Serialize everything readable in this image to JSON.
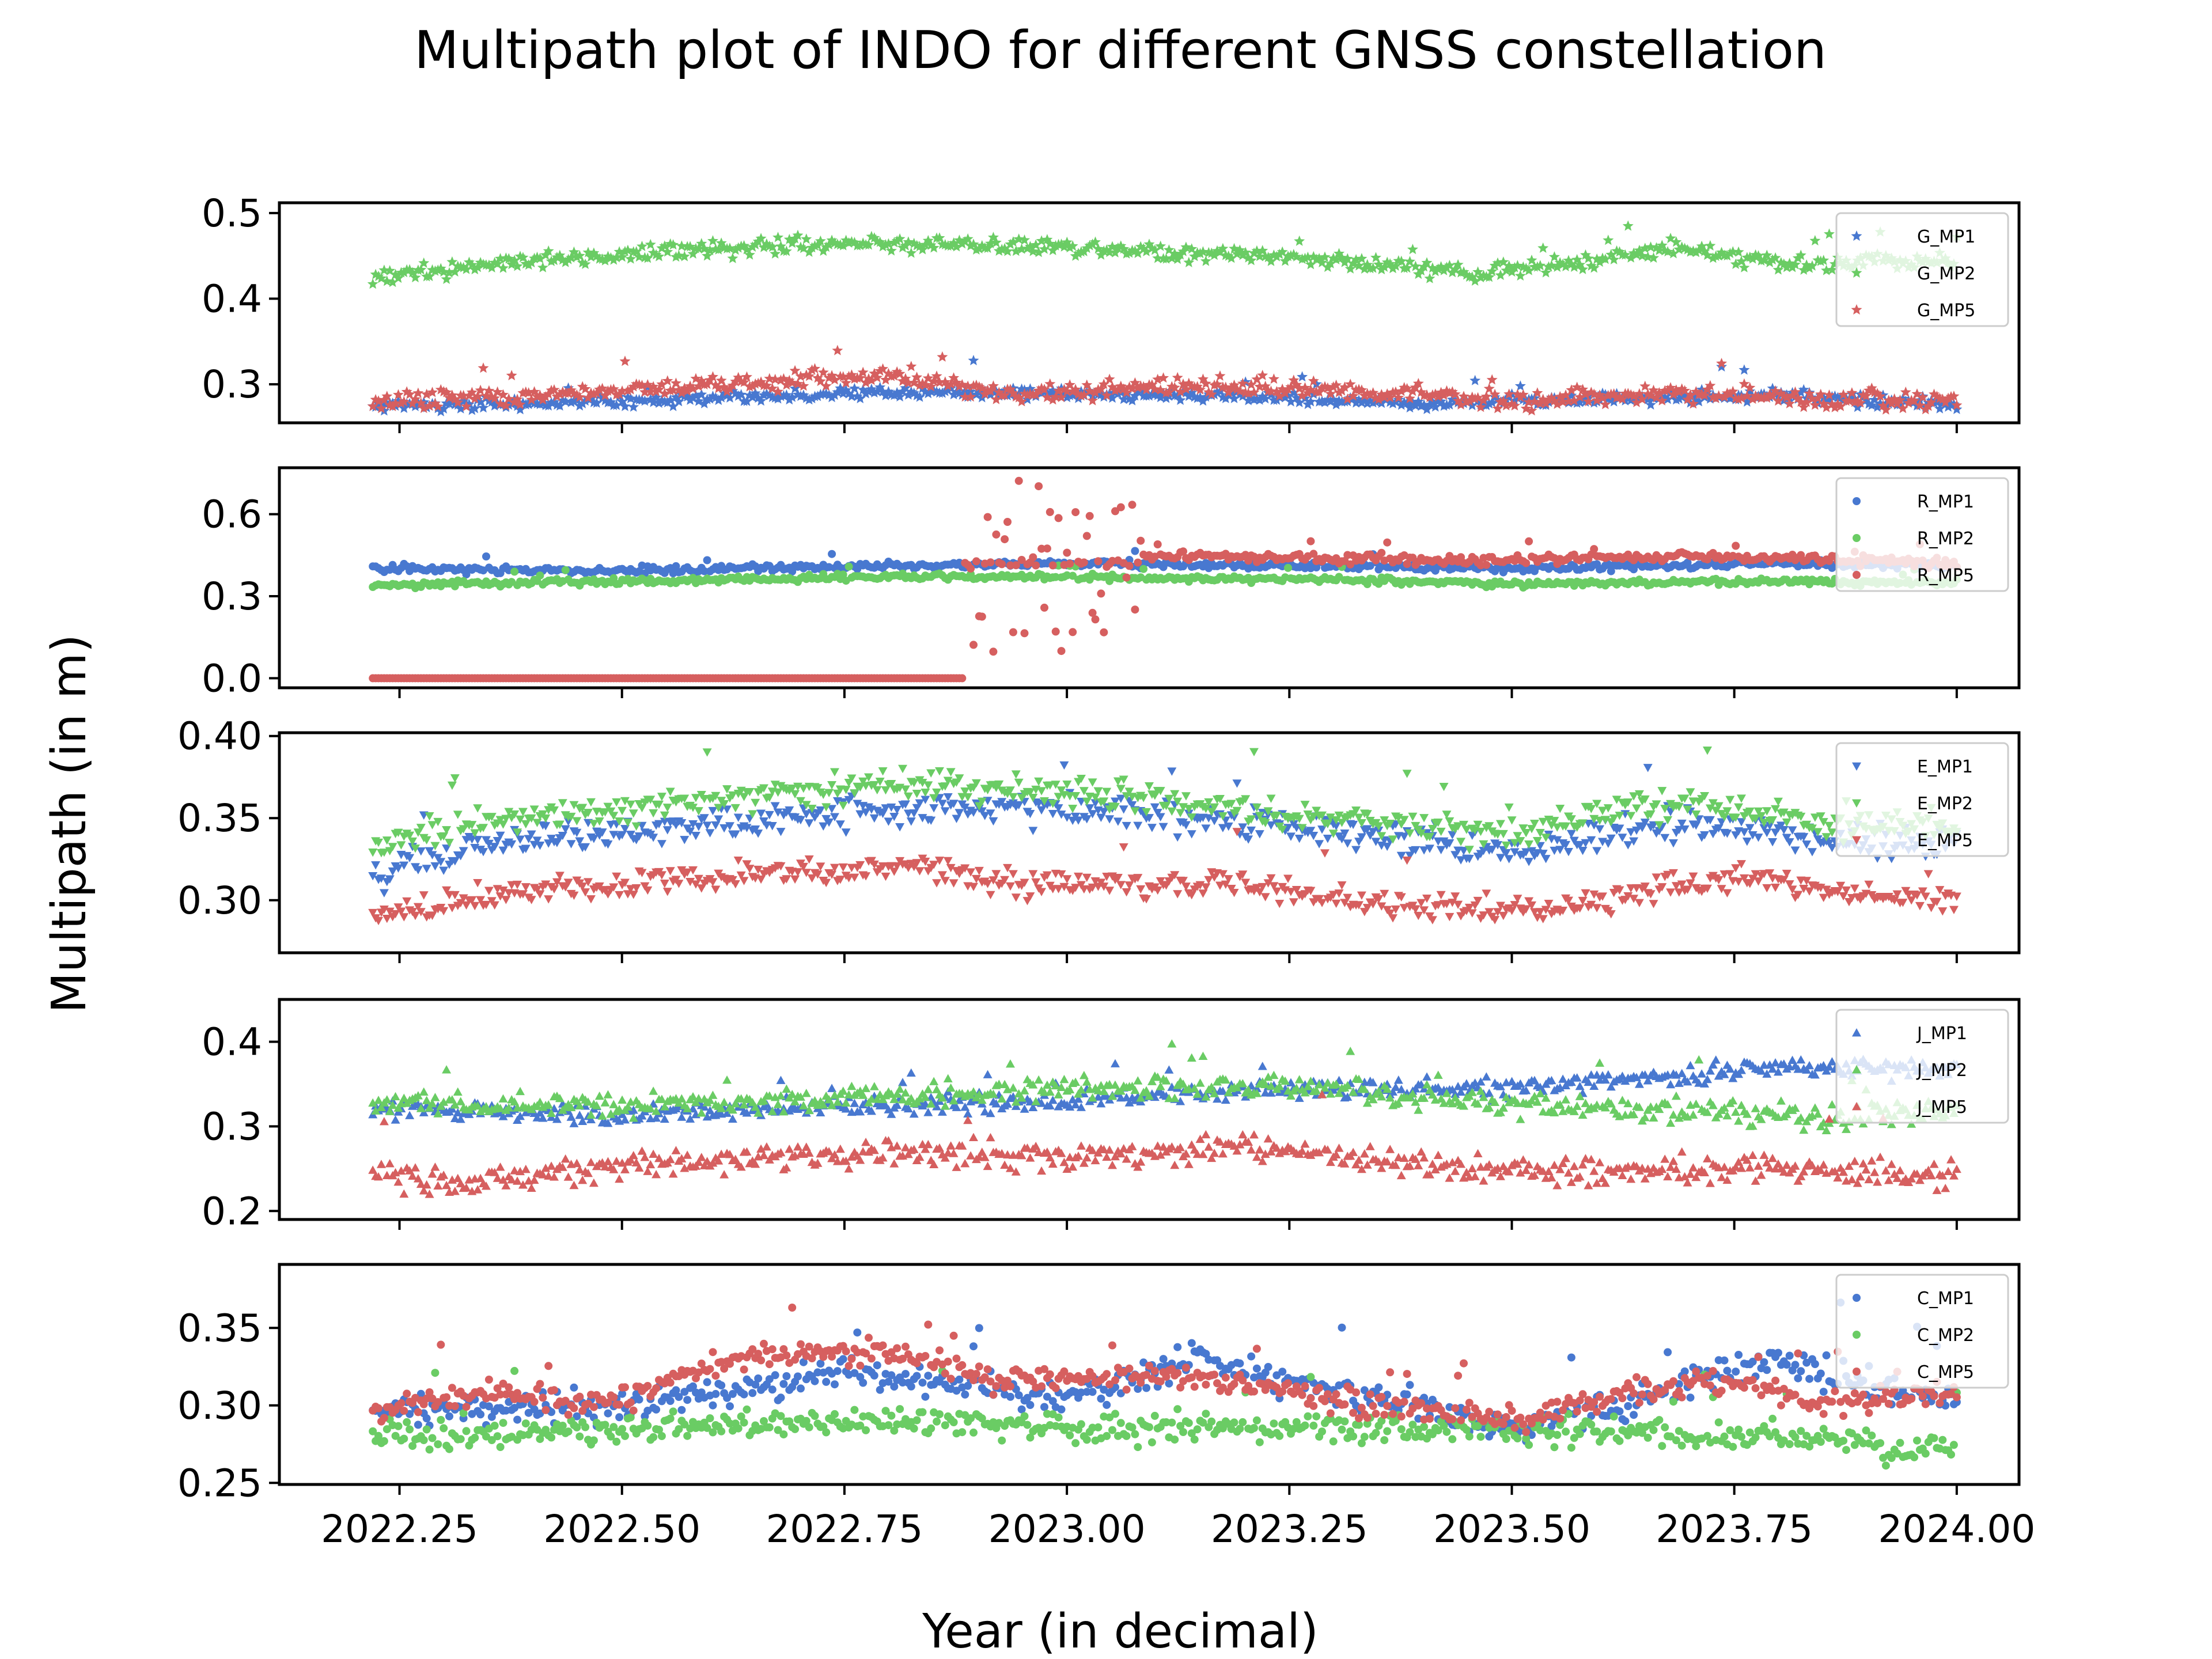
{
  "chart_data": {
    "type": "scatter",
    "title": "Multipath plot of INDO for different GNSS constellation",
    "xlabel": "Year (in decimal)",
    "ylabel": "Multipath (in m)",
    "xlim": [
      2022.115,
      2024.07
    ],
    "x_ticks": [
      "2022.25",
      "2022.50",
      "2022.75",
      "2023.00",
      "2023.25",
      "2023.50",
      "2023.75",
      "2024.00"
    ],
    "x_tick_values": [
      2022.25,
      2022.5,
      2022.75,
      2023.0,
      2023.25,
      2023.5,
      2023.75,
      2024.0
    ],
    "x_range": [
      2022.22,
      2024.0
    ],
    "colors": {
      "MP1": "#4878d0",
      "MP2": "#6acc64",
      "MP5": "#d65f5f"
    },
    "legend_position": "upper right",
    "grid": false,
    "panels": [
      {
        "constellation": "G",
        "marker": "star",
        "ylim": [
          0.255,
          0.512
        ],
        "y_ticks": [
          "0.3",
          "0.4",
          "0.5"
        ],
        "y_tick_values": [
          0.3,
          0.4,
          0.5
        ],
        "legend": [
          "G_MP1",
          "G_MP2",
          "G_MP5"
        ],
        "series": [
          {
            "name": "G_MP1",
            "points": [
              [
                2022.22,
                0.275
              ],
              [
                2022.4,
                0.277
              ],
              [
                2022.6,
                0.283
              ],
              [
                2022.8,
                0.292
              ],
              [
                2023.0,
                0.288
              ],
              [
                2023.2,
                0.286
              ],
              [
                2023.4,
                0.278
              ],
              [
                2023.6,
                0.282
              ],
              [
                2023.8,
                0.287
              ],
              [
                2024.0,
                0.276
              ]
            ],
            "noise": 0.006
          },
          {
            "name": "G_MP2",
            "points": [
              [
                2022.22,
                0.425
              ],
              [
                2022.4,
                0.445
              ],
              [
                2022.6,
                0.458
              ],
              [
                2022.75,
                0.465
              ],
              [
                2022.9,
                0.462
              ],
              [
                2023.1,
                0.455
              ],
              [
                2023.3,
                0.445
              ],
              [
                2023.45,
                0.43
              ],
              [
                2023.6,
                0.445
              ],
              [
                2023.68,
                0.46
              ],
              [
                2023.8,
                0.44
              ],
              [
                2024.0,
                0.445
              ]
            ],
            "noise": 0.008
          },
          {
            "name": "G_MP5",
            "points": [
              [
                2022.22,
                0.28
              ],
              [
                2022.4,
                0.287
              ],
              [
                2022.6,
                0.298
              ],
              [
                2022.8,
                0.312
              ],
              [
                2022.95,
                0.288
              ],
              [
                2023.15,
                0.298
              ],
              [
                2023.3,
                0.293
              ],
              [
                2023.5,
                0.28
              ],
              [
                2023.7,
                0.29
              ],
              [
                2023.85,
                0.283
              ],
              [
                2024.0,
                0.28
              ]
            ],
            "noise": 0.009
          }
        ]
      },
      {
        "constellation": "R",
        "marker": "circle",
        "ylim": [
          -0.035,
          0.77
        ],
        "y_ticks": [
          "0.0",
          "0.3",
          "0.6"
        ],
        "y_tick_values": [
          0.0,
          0.3,
          0.6
        ],
        "legend": [
          "R_MP1",
          "R_MP2",
          "R_MP5"
        ],
        "series": [
          {
            "name": "R_MP1",
            "points": [
              [
                2022.22,
                0.4
              ],
              [
                2022.5,
                0.395
              ],
              [
                2022.8,
                0.41
              ],
              [
                2023.0,
                0.42
              ],
              [
                2023.3,
                0.41
              ],
              [
                2023.5,
                0.4
              ],
              [
                2023.8,
                0.42
              ],
              [
                2024.0,
                0.41
              ]
            ],
            "noise": 0.012
          },
          {
            "name": "R_MP2",
            "points": [
              [
                2022.22,
                0.34
              ],
              [
                2022.5,
                0.355
              ],
              [
                2022.8,
                0.37
              ],
              [
                2023.0,
                0.37
              ],
              [
                2023.3,
                0.36
              ],
              [
                2023.5,
                0.345
              ],
              [
                2023.8,
                0.355
              ],
              [
                2024.0,
                0.35
              ]
            ],
            "noise": 0.01
          },
          {
            "name": "R_MP5",
            "points": [
              [
                2022.22,
                0.0
              ],
              [
                2022.88,
                0.0
              ],
              [
                2022.9,
                0.4
              ],
              [
                2023.07,
                0.45
              ],
              [
                2023.3,
                0.44
              ],
              [
                2023.5,
                0.43
              ],
              [
                2023.7,
                0.45
              ],
              [
                2024.0,
                0.42
              ]
            ],
            "noise": 0.015
          }
        ]
      },
      {
        "constellation": "E",
        "marker": "triangle-down",
        "ylim": [
          0.268,
          0.402
        ],
        "y_ticks": [
          "0.30",
          "0.35",
          "0.40"
        ],
        "y_tick_values": [
          0.3,
          0.35,
          0.4
        ],
        "legend": [
          "E_MP1",
          "E_MP2",
          "E_MP5"
        ],
        "series": [
          {
            "name": "E_MP1",
            "points": [
              [
                2022.22,
                0.315
              ],
              [
                2022.35,
                0.335
              ],
              [
                2022.6,
                0.345
              ],
              [
                2022.8,
                0.355
              ],
              [
                2023.0,
                0.355
              ],
              [
                2023.2,
                0.348
              ],
              [
                2023.4,
                0.335
              ],
              [
                2023.5,
                0.33
              ],
              [
                2023.7,
                0.348
              ],
              [
                2023.85,
                0.335
              ],
              [
                2024.0,
                0.335
              ]
            ],
            "noise": 0.008
          },
          {
            "name": "E_MP2",
            "points": [
              [
                2022.22,
                0.335
              ],
              [
                2022.35,
                0.348
              ],
              [
                2022.6,
                0.36
              ],
              [
                2022.8,
                0.37
              ],
              [
                2023.0,
                0.365
              ],
              [
                2023.2,
                0.355
              ],
              [
                2023.4,
                0.345
              ],
              [
                2023.5,
                0.34
              ],
              [
                2023.7,
                0.36
              ],
              [
                2023.85,
                0.345
              ],
              [
                2024.0,
                0.345
              ]
            ],
            "noise": 0.008
          },
          {
            "name": "E_MP5",
            "points": [
              [
                2022.22,
                0.29
              ],
              [
                2022.4,
                0.305
              ],
              [
                2022.6,
                0.315
              ],
              [
                2022.85,
                0.32
              ],
              [
                2022.93,
                0.31
              ],
              [
                2023.2,
                0.31
              ],
              [
                2023.4,
                0.295
              ],
              [
                2023.55,
                0.295
              ],
              [
                2023.75,
                0.315
              ],
              [
                2023.85,
                0.305
              ],
              [
                2024.0,
                0.3
              ]
            ],
            "noise": 0.007
          }
        ]
      },
      {
        "constellation": "J",
        "marker": "triangle-up",
        "ylim": [
          0.19,
          0.45
        ],
        "y_ticks": [
          "0.2",
          "0.3",
          "0.4"
        ],
        "y_tick_values": [
          0.2,
          0.3,
          0.4
        ],
        "legend": [
          "J_MP1",
          "J_MP2",
          "J_MP5"
        ],
        "series": [
          {
            "name": "J_MP1",
            "points": [
              [
                2022.22,
                0.32
              ],
              [
                2022.5,
                0.315
              ],
              [
                2022.8,
                0.325
              ],
              [
                2023.0,
                0.33
              ],
              [
                2023.3,
                0.345
              ],
              [
                2023.5,
                0.345
              ],
              [
                2023.7,
                0.36
              ],
              [
                2023.8,
                0.37
              ],
              [
                2024.0,
                0.37
              ]
            ],
            "noise": 0.01
          },
          {
            "name": "J_MP2",
            "points": [
              [
                2022.22,
                0.325
              ],
              [
                2022.5,
                0.325
              ],
              [
                2022.8,
                0.335
              ],
              [
                2023.0,
                0.345
              ],
              [
                2023.3,
                0.345
              ],
              [
                2023.5,
                0.325
              ],
              [
                2023.7,
                0.32
              ],
              [
                2023.85,
                0.31
              ],
              [
                2024.0,
                0.32
              ]
            ],
            "noise": 0.012
          },
          {
            "name": "J_MP5",
            "points": [
              [
                2022.22,
                0.245
              ],
              [
                2022.3,
                0.23
              ],
              [
                2022.5,
                0.255
              ],
              [
                2022.8,
                0.27
              ],
              [
                2023.0,
                0.265
              ],
              [
                2023.2,
                0.275
              ],
              [
                2023.4,
                0.255
              ],
              [
                2023.55,
                0.245
              ],
              [
                2023.75,
                0.25
              ],
              [
                2023.85,
                0.245
              ],
              [
                2024.0,
                0.245
              ]
            ],
            "noise": 0.014
          }
        ]
      },
      {
        "constellation": "C",
        "marker": "circle",
        "ylim": [
          0.249,
          0.391
        ],
        "y_ticks": [
          "0.25",
          "0.30",
          "0.35"
        ],
        "y_tick_values": [
          0.25,
          0.3,
          0.35
        ],
        "legend": [
          "C_MP1",
          "C_MP2",
          "C_MP5"
        ],
        "series": [
          {
            "name": "C_MP1",
            "points": [
              [
                2022.22,
                0.295
              ],
              [
                2022.5,
                0.3
              ],
              [
                2022.75,
                0.32
              ],
              [
                2023.0,
                0.305
              ],
              [
                2023.15,
                0.33
              ],
              [
                2023.3,
                0.31
              ],
              [
                2023.5,
                0.285
              ],
              [
                2023.65,
                0.305
              ],
              [
                2023.8,
                0.33
              ],
              [
                2024.0,
                0.3
              ]
            ],
            "noise": 0.009
          },
          {
            "name": "C_MP2",
            "points": [
              [
                2022.22,
                0.28
              ],
              [
                2022.5,
                0.285
              ],
              [
                2022.8,
                0.29
              ],
              [
                2023.0,
                0.285
              ],
              [
                2023.3,
                0.285
              ],
              [
                2023.5,
                0.285
              ],
              [
                2023.8,
                0.28
              ],
              [
                2024.0,
                0.27
              ]
            ],
            "noise": 0.008
          },
          {
            "name": "C_MP5",
            "points": [
              [
                2022.22,
                0.295
              ],
              [
                2022.35,
                0.31
              ],
              [
                2022.48,
                0.3
              ],
              [
                2022.62,
                0.33
              ],
              [
                2022.8,
                0.335
              ],
              [
                2022.92,
                0.315
              ],
              [
                2023.1,
                0.32
              ],
              [
                2023.35,
                0.3
              ],
              [
                2023.5,
                0.29
              ],
              [
                2023.65,
                0.31
              ],
              [
                2023.75,
                0.315
              ],
              [
                2023.85,
                0.3
              ],
              [
                2024.0,
                0.31
              ]
            ],
            "noise": 0.007
          }
        ]
      }
    ]
  }
}
